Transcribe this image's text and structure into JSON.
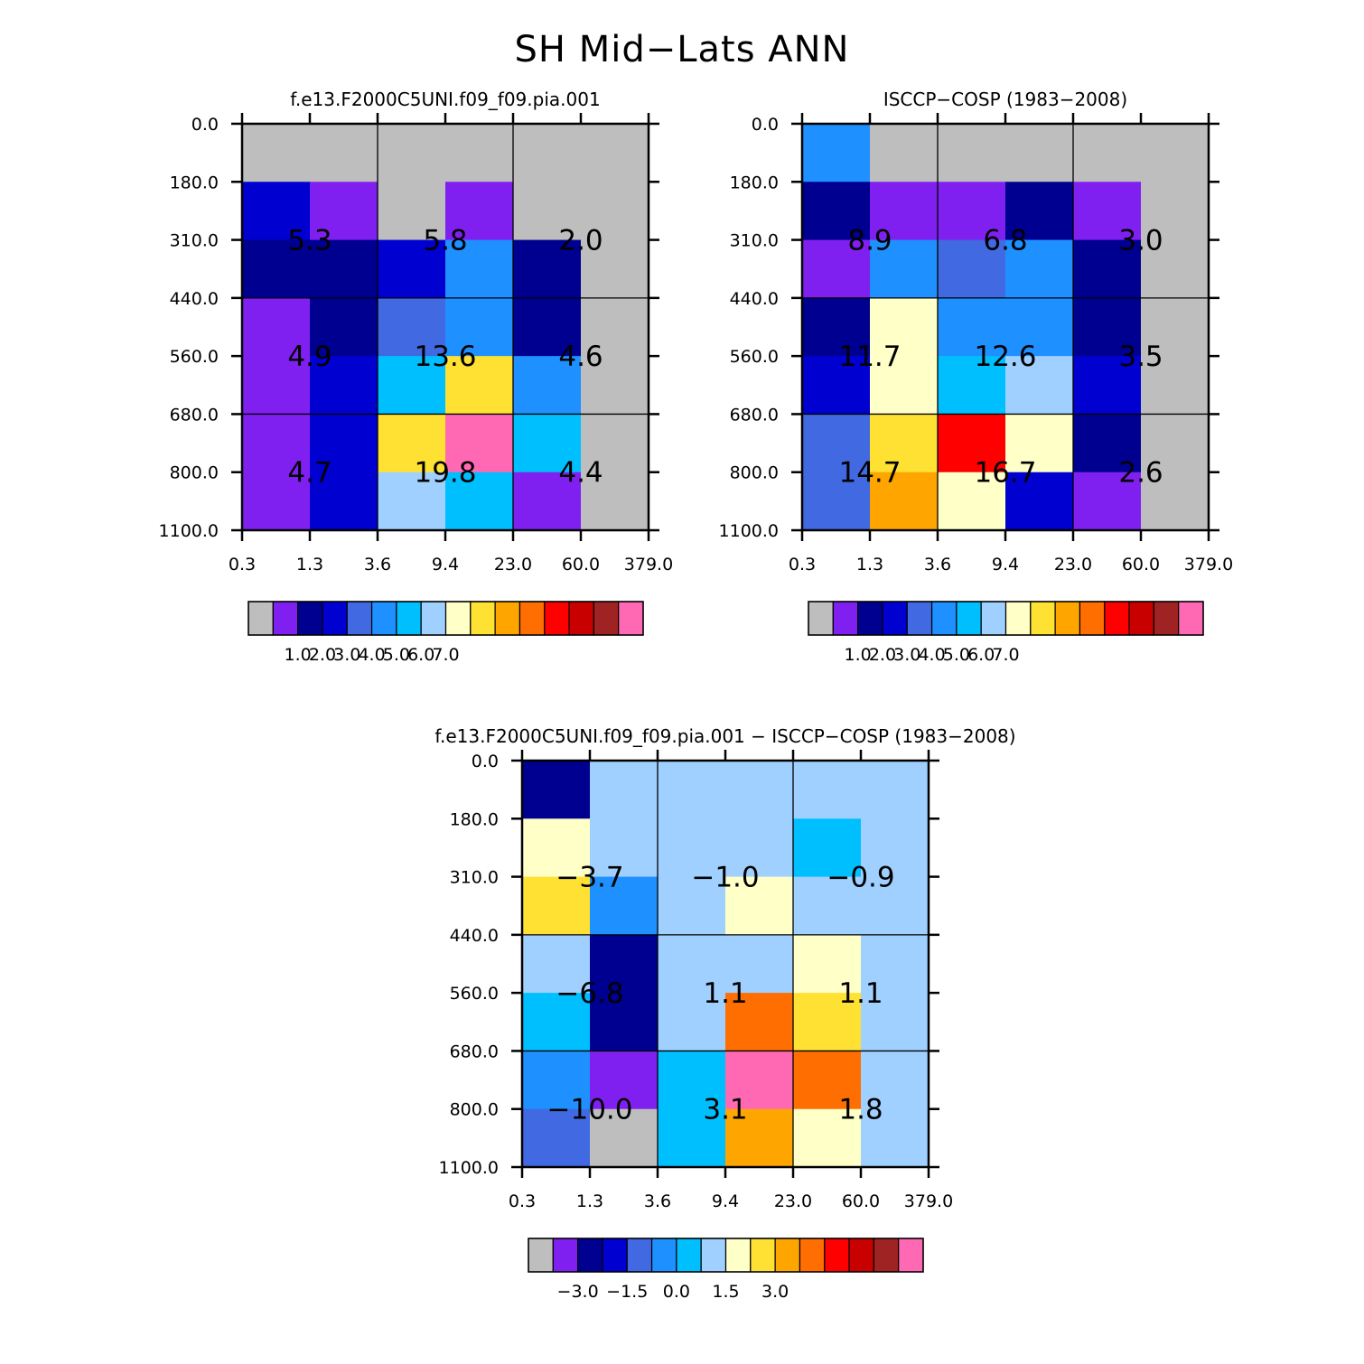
{
  "page": {
    "title": "SH Mid−Lats ANN"
  },
  "chart_data": [
    {
      "type": "heatmap",
      "title": "f.e13.F2000C5UNI.f09_f09.pia.001",
      "x_ticks": [
        "0.3",
        "1.3",
        "3.6",
        "9.4",
        "23.0",
        "60.0",
        "379.0"
      ],
      "y_ticks": [
        "0.0",
        "180.0",
        "310.0",
        "440.0",
        "560.0",
        "680.0",
        "800.0",
        "1100.0"
      ],
      "x_label": "",
      "y_label": "",
      "cells": [
        [
          0,
          0,
          0,
          0,
          0,
          0
        ],
        [
          3,
          1,
          0,
          1,
          0,
          0
        ],
        [
          2,
          2,
          3,
          5,
          2,
          0
        ],
        [
          1,
          2,
          4,
          5,
          2,
          0
        ],
        [
          1,
          3,
          6,
          9,
          5,
          0
        ],
        [
          1,
          3,
          9,
          15,
          6,
          0
        ],
        [
          1,
          3,
          7,
          6,
          1,
          0
        ]
      ],
      "group_labels": [
        [
          "5.3",
          "5.8",
          "2.0"
        ],
        [
          "4.9",
          "13.6",
          "4.6"
        ],
        [
          "4.7",
          "19.8",
          "4.4"
        ]
      ],
      "colorbar_labels": [
        "1.0",
        "2.0",
        "3.0",
        "4.0",
        "5.0",
        "6.0",
        "7.0"
      ],
      "colorbar_label_boundaries": [
        2,
        3,
        4,
        5,
        6,
        7,
        8
      ]
    },
    {
      "type": "heatmap",
      "title": "ISCCP−COSP (1983−2008)",
      "x_ticks": [
        "0.3",
        "1.3",
        "3.6",
        "9.4",
        "23.0",
        "60.0",
        "379.0"
      ],
      "y_ticks": [
        "0.0",
        "180.0",
        "310.0",
        "440.0",
        "560.0",
        "680.0",
        "800.0",
        "1100.0"
      ],
      "x_label": "",
      "y_label": "",
      "cells": [
        [
          5,
          0,
          0,
          0,
          0,
          0
        ],
        [
          2,
          1,
          1,
          2,
          1,
          0
        ],
        [
          1,
          5,
          4,
          5,
          2,
          0
        ],
        [
          2,
          8,
          5,
          5,
          2,
          0
        ],
        [
          3,
          8,
          6,
          7,
          3,
          0
        ],
        [
          4,
          9,
          12,
          8,
          2,
          0
        ],
        [
          4,
          10,
          8,
          3,
          1,
          0
        ]
      ],
      "group_labels": [
        [
          "8.9",
          "6.8",
          "3.0"
        ],
        [
          "11.7",
          "12.6",
          "3.5"
        ],
        [
          "14.7",
          "16.7",
          "2.6"
        ]
      ],
      "colorbar_labels": [
        "1.0",
        "2.0",
        "3.0",
        "4.0",
        "5.0",
        "6.0",
        "7.0"
      ],
      "colorbar_label_boundaries": [
        2,
        3,
        4,
        5,
        6,
        7,
        8
      ]
    },
    {
      "type": "heatmap",
      "title": "f.e13.F2000C5UNI.f09_f09.pia.001 − ISCCP−COSP (1983−2008)",
      "x_ticks": [
        "0.3",
        "1.3",
        "3.6",
        "9.4",
        "23.0",
        "60.0",
        "379.0"
      ],
      "y_ticks": [
        "0.0",
        "180.0",
        "310.0",
        "440.0",
        "560.0",
        "680.0",
        "800.0",
        "1100.0"
      ],
      "x_label": "",
      "y_label": "",
      "cells": [
        [
          2,
          7,
          7,
          7,
          7,
          7
        ],
        [
          8,
          7,
          7,
          7,
          6,
          7
        ],
        [
          9,
          5,
          7,
          8,
          7,
          7
        ],
        [
          7,
          2,
          7,
          7,
          8,
          7
        ],
        [
          6,
          2,
          7,
          11,
          9,
          7
        ],
        [
          5,
          1,
          6,
          15,
          11,
          7
        ],
        [
          4,
          0,
          6,
          10,
          8,
          7
        ]
      ],
      "group_labels": [
        [
          "−3.7",
          "−1.0",
          "−0.9"
        ],
        [
          "−6.8",
          "1.1",
          "1.1"
        ],
        [
          "−10.0",
          "3.1",
          "1.8"
        ]
      ],
      "colorbar_labels": [
        "−3.0",
        "−1.5",
        "0.0",
        "1.5",
        "3.0"
      ],
      "colorbar_label_boundaries": [
        2,
        4,
        6,
        8,
        10
      ]
    }
  ],
  "colors": {
    "palette": [
      "#bebebe",
      "#8020f0",
      "#000090",
      "#0000d0",
      "#4169e1",
      "#1e90ff",
      "#00bfff",
      "#a0d0ff",
      "#ffffc8",
      "#ffe133",
      "#ffa500",
      "#ff6e00",
      "#ff0000",
      "#c80000",
      "#a02323",
      "#ff69b4"
    ],
    "grid": "#000000",
    "text": "#000000"
  }
}
